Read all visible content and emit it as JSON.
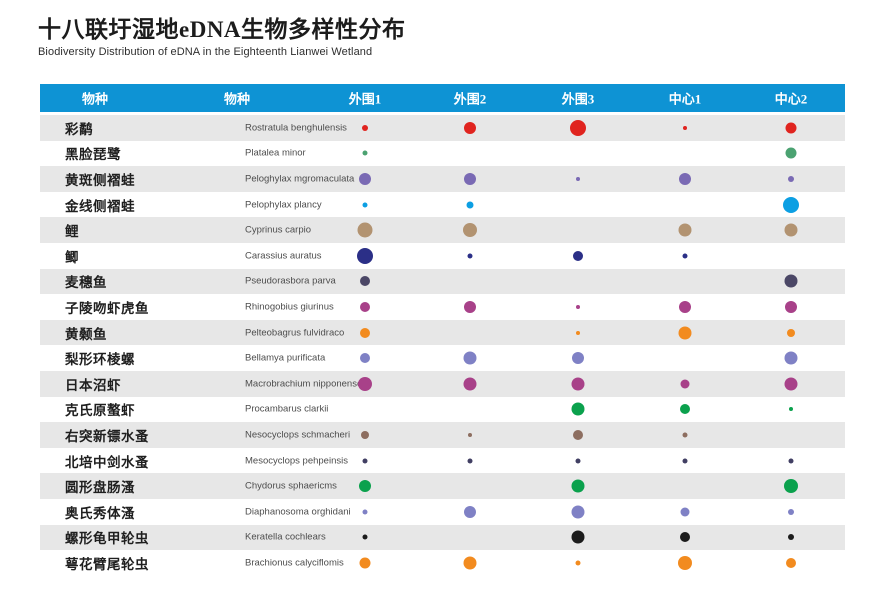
{
  "page": {
    "title": "十八联圩湿地eDNA生物多样性分布",
    "subtitle": "Biodiversity Distribution of eDNA in the Eighteenth Lianwei Wetland"
  },
  "table": {
    "headers": [
      "物种",
      "物种",
      "外围1",
      "外围2",
      "外围3",
      "中心1",
      "中心2"
    ]
  },
  "colors": {
    "header_bg": "#0e93d4",
    "header_text": "#ffffff",
    "row_alt_bg": "#e7e7e7",
    "row_bg": "#ffffff"
  },
  "chart_data": {
    "type": "table",
    "title": "十八联圩湿地eDNA生物多样性分布",
    "subtitle": "Biodiversity Distribution of eDNA in the Eighteenth Lianwei Wetland",
    "columns": [
      "物种",
      "物种",
      "外围1",
      "外围2",
      "外围3",
      "中心1",
      "中心2"
    ],
    "sites": [
      "外围1",
      "外围2",
      "外围3",
      "中心1",
      "中心2"
    ],
    "value_encoding": "relative abundance shown as bubble diameter in px; 0 = species absent at site",
    "rows": [
      {
        "cn": "彩鹬",
        "latin": "Rostratula benghulensis",
        "color": "#e0241f",
        "values": [
          6,
          12,
          16,
          4,
          11
        ]
      },
      {
        "cn": "黑脸琵鹭",
        "latin": "Platalea minor",
        "color": "#4ba271",
        "values": [
          5,
          0,
          0,
          0,
          11
        ]
      },
      {
        "cn": "黄斑侧褶蛙",
        "latin": "Peloghylax mgromaculata",
        "color": "#7a6ab4",
        "values": [
          12,
          12,
          4,
          12,
          6
        ]
      },
      {
        "cn": "金线侧褶蛙",
        "latin": "Pelophylax plancy",
        "color": "#0c9fe3",
        "values": [
          5,
          7,
          0,
          0,
          16
        ]
      },
      {
        "cn": "鲤",
        "latin": "Cyprinus carpio",
        "color": "#b29371",
        "values": [
          15,
          14,
          0,
          13,
          13
        ]
      },
      {
        "cn": "鲫",
        "latin": "Carassius auratus",
        "color": "#2b2f87",
        "values": [
          16,
          5,
          10,
          5,
          0
        ]
      },
      {
        "cn": "麦穗鱼",
        "latin": "Pseudorasbora parva",
        "color": "#4b4766",
        "values": [
          10,
          0,
          0,
          0,
          13
        ]
      },
      {
        "cn": "子陵吻虾虎鱼",
        "latin": "Rhinogobius giurinus",
        "color": "#a84189",
        "values": [
          10,
          12,
          4,
          12,
          12
        ]
      },
      {
        "cn": "黄颡鱼",
        "latin": "Pelteobagrus fulvidraco",
        "color": "#f28b1f",
        "values": [
          10,
          0,
          4,
          13,
          8
        ]
      },
      {
        "cn": "梨形环棱螺",
        "latin": "Bellamya purificata",
        "color": "#7f81c5",
        "values": [
          10,
          13,
          12,
          0,
          13
        ]
      },
      {
        "cn": "日本沼虾",
        "latin": "Macrobrachium nipponense",
        "color": "#a84189",
        "values": [
          14,
          13,
          13,
          9,
          13
        ]
      },
      {
        "cn": "克氏原螯虾",
        "latin": "Procambarus clarkii",
        "color": "#0ba14d",
        "values": [
          0,
          0,
          13,
          10,
          4
        ]
      },
      {
        "cn": "右突新镖水蚤",
        "latin": "Nesocyclops schmacheri",
        "color": "#8d6e60",
        "values": [
          8,
          4,
          10,
          5,
          0
        ]
      },
      {
        "cn": "北培中剑水蚤",
        "latin": "Mesocyclops pehpeinsis",
        "color": "#413f63",
        "values": [
          5,
          5,
          5,
          5,
          5
        ]
      },
      {
        "cn": "圆形盘肠溞",
        "latin": "Chydorus sphaericms",
        "color": "#0ba14d",
        "values": [
          12,
          0,
          13,
          0,
          14
        ]
      },
      {
        "cn": "奥氏秀体溞",
        "latin": "Diaphanosoma orghidani",
        "color": "#7f81c5",
        "values": [
          5,
          12,
          13,
          9,
          6
        ]
      },
      {
        "cn": "螺形龟甲轮虫",
        "latin": "Keratella cochlears",
        "color": "#1c1c1c",
        "values": [
          5,
          0,
          13,
          10,
          6
        ]
      },
      {
        "cn": "萼花臂尾轮虫",
        "latin": "Brachionus calyciflomis",
        "color": "#f28b1f",
        "values": [
          11,
          13,
          5,
          14,
          10
        ]
      }
    ]
  }
}
